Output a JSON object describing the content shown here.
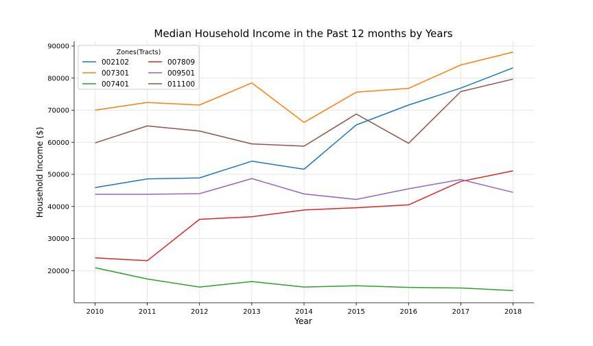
{
  "chart_data": {
    "type": "line",
    "title": "Median Household Income in the Past 12 months by Years",
    "xlabel": "Year",
    "ylabel": "Household Income ($)",
    "x": [
      2010,
      2011,
      2012,
      2013,
      2014,
      2015,
      2016,
      2017,
      2018
    ],
    "xlim": [
      2009.6,
      2018.4
    ],
    "ylim": [
      10000,
      91500
    ],
    "yticks": [
      20000,
      30000,
      40000,
      50000,
      60000,
      70000,
      80000,
      90000
    ],
    "grid": true,
    "legend": {
      "title": "Zones(Tracts)",
      "placement": "top-left",
      "columns": 2
    },
    "series": [
      {
        "name": "002102",
        "color": "#1f77b4",
        "values": [
          45900,
          48600,
          48900,
          54100,
          51600,
          65400,
          71600,
          76900,
          83200
        ]
      },
      {
        "name": "007301",
        "color": "#ff7f0e",
        "values": [
          70000,
          72400,
          71600,
          78500,
          66200,
          75600,
          76800,
          84100,
          88100
        ]
      },
      {
        "name": "007401",
        "color": "#2ca02c",
        "values": [
          20900,
          17400,
          14900,
          16600,
          14900,
          15300,
          14800,
          14600,
          13800
        ]
      },
      {
        "name": "007809",
        "color": "#d62728",
        "values": [
          24000,
          23100,
          36000,
          36800,
          38900,
          39600,
          40500,
          47800,
          51100
        ]
      },
      {
        "name": "009501",
        "color": "#9467bd",
        "values": [
          43800,
          43800,
          44000,
          48700,
          43900,
          42200,
          45500,
          48400,
          44400
        ]
      },
      {
        "name": "011100",
        "color": "#8c564b",
        "values": [
          59800,
          65100,
          63500,
          59500,
          58800,
          68800,
          59700,
          75800,
          79700
        ]
      }
    ]
  }
}
